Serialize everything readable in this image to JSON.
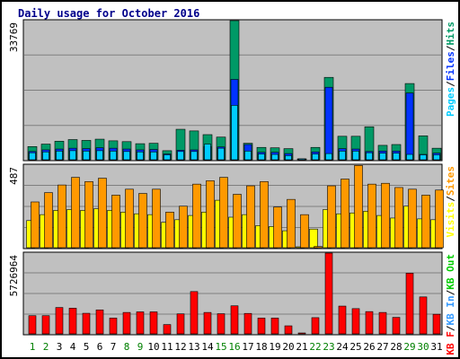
{
  "title": "Daily usage for October 2016",
  "colors": {
    "background": "#ffffff",
    "panel": "#c0c0c0",
    "title": "#00008b",
    "weekday": "#000000",
    "weekend": "#008000",
    "hits": "#009966",
    "files": "#0033ff",
    "pages": "#00ccff",
    "visits": "#ffff00",
    "sites": "#ff9900",
    "kbin": "#3399ff",
    "kbout": "#00cc00",
    "kbf": "#ff0000",
    "separator": "#000000"
  },
  "chart_data": [
    {
      "type": "bar",
      "panel": "hits_files_pages",
      "ymax_label": "33769",
      "ylim": [
        0,
        33769
      ],
      "grid": true,
      "legend": {
        "placement": "right",
        "entries": [
          {
            "text": "Pages",
            "color": "#00ccff"
          },
          {
            "text": "/",
            "color": "#000000"
          },
          {
            "text": "Files",
            "color": "#0033ff"
          },
          {
            "text": "/",
            "color": "#000000"
          },
          {
            "text": "Hits",
            "color": "#009966"
          }
        ]
      },
      "categories": [
        "1",
        "2",
        "3",
        "4",
        "5",
        "6",
        "7",
        "8",
        "9",
        "10",
        "11",
        "12",
        "13",
        "14",
        "15",
        "16",
        "17",
        "18",
        "19",
        "20",
        "21",
        "22",
        "23",
        "24",
        "25",
        "26",
        "27",
        "28",
        "29",
        "30",
        "31"
      ],
      "series": [
        {
          "name": "Hits",
          "color": "#009966",
          "values": [
            3200,
            3800,
            4500,
            4900,
            4700,
            5000,
            4600,
            4400,
            3900,
            4000,
            2200,
            7400,
            7000,
            6100,
            5500,
            33769,
            4000,
            3000,
            2900,
            2700,
            0,
            3000,
            20000,
            5700,
            5700,
            8000,
            3500,
            3700,
            18500,
            5800,
            2800
          ]
        },
        {
          "name": "Files",
          "color": "#0033ff",
          "values": [
            2000,
            2400,
            2600,
            2800,
            2700,
            2900,
            2800,
            2600,
            2400,
            2500,
            1400,
            2300,
            2400,
            3200,
            3100,
            19500,
            3700,
            1800,
            1800,
            1500,
            0,
            1900,
            17600,
            2700,
            2600,
            2000,
            2100,
            2100,
            16200,
            1300,
            1600
          ]
        },
        {
          "name": "Pages",
          "color": "#00ccff",
          "values": [
            1700,
            1900,
            2100,
            2200,
            2100,
            2200,
            2100,
            2000,
            1900,
            1900,
            1200,
            2000,
            2000,
            3800,
            2800,
            13200,
            2100,
            1400,
            1300,
            1000,
            0,
            1400,
            1500,
            2100,
            2100,
            1700,
            1600,
            1600,
            1300,
            1200,
            1200
          ]
        }
      ]
    },
    {
      "type": "bar",
      "panel": "visits_sites",
      "ymax_label": "487",
      "ylim": [
        0,
        487
      ],
      "grid": true,
      "legend": {
        "placement": "right",
        "entries": [
          {
            "text": "Visits",
            "color": "#ffff00"
          },
          {
            "text": "/",
            "color": "#000000"
          },
          {
            "text": "Sites",
            "color": "#ff9900"
          }
        ]
      },
      "categories": [
        "1",
        "2",
        "3",
        "4",
        "5",
        "6",
        "7",
        "8",
        "9",
        "10",
        "11",
        "12",
        "13",
        "14",
        "15",
        "16",
        "17",
        "18",
        "19",
        "20",
        "21",
        "22",
        "23",
        "24",
        "25",
        "26",
        "27",
        "28",
        "29",
        "30",
        "31"
      ],
      "series": [
        {
          "name": "Visits",
          "color": "#ffff00",
          "values": [
            160,
            195,
            220,
            225,
            220,
            230,
            220,
            210,
            200,
            195,
            150,
            165,
            190,
            210,
            280,
            180,
            195,
            130,
            125,
            100,
            5,
            110,
            225,
            200,
            205,
            215,
            190,
            175,
            245,
            170,
            165
          ]
        },
        {
          "name": "Sites",
          "color": "#ff9900",
          "values": [
            270,
            325,
            370,
            415,
            390,
            410,
            310,
            345,
            320,
            345,
            210,
            245,
            375,
            395,
            415,
            315,
            365,
            390,
            240,
            285,
            195,
            7,
            365,
            405,
            485,
            375,
            380,
            355,
            345,
            310,
            340
          ]
        }
      ]
    },
    {
      "type": "bar",
      "panel": "kbytes",
      "ymax_label": "5726964",
      "ylim": [
        0,
        5726964
      ],
      "grid": true,
      "legend": {
        "placement": "right",
        "entries": [
          {
            "text": "KB F",
            "color": "#ff0000"
          },
          {
            "text": "/",
            "color": "#000000"
          },
          {
            "text": "KB In",
            "color": "#3399ff"
          },
          {
            "text": "/",
            "color": "#000000"
          },
          {
            "text": "KB Out",
            "color": "#00cc00"
          }
        ]
      },
      "categories": [
        "1",
        "2",
        "3",
        "4",
        "5",
        "6",
        "7",
        "8",
        "9",
        "10",
        "11",
        "12",
        "13",
        "14",
        "15",
        "16",
        "17",
        "18",
        "19",
        "20",
        "21",
        "22",
        "23",
        "24",
        "25",
        "26",
        "27",
        "28",
        "29",
        "30",
        "31"
      ],
      "series": [
        {
          "name": "KB F",
          "color": "#ff0000",
          "values": [
            1290000,
            1290000,
            1870000,
            1820000,
            1460000,
            1700000,
            1120000,
            1520000,
            1560000,
            1560000,
            660000,
            1420000,
            3000000,
            1520000,
            1430000,
            1990000,
            1450000,
            1120000,
            1120000,
            570000,
            40000,
            1150000,
            5726964,
            1970000,
            1790000,
            1580000,
            1520000,
            1170000,
            4300000,
            2620000,
            1390000
          ]
        }
      ]
    }
  ],
  "x_axis": {
    "labels": [
      "1",
      "2",
      "3",
      "4",
      "5",
      "6",
      "7",
      "8",
      "9",
      "10",
      "11",
      "12",
      "13",
      "14",
      "15",
      "16",
      "17",
      "18",
      "19",
      "20",
      "21",
      "22",
      "23",
      "24",
      "25",
      "26",
      "27",
      "28",
      "29",
      "30",
      "31"
    ],
    "weekend_days": [
      "1",
      "2",
      "8",
      "9",
      "15",
      "16",
      "22",
      "23",
      "29",
      "30"
    ]
  }
}
